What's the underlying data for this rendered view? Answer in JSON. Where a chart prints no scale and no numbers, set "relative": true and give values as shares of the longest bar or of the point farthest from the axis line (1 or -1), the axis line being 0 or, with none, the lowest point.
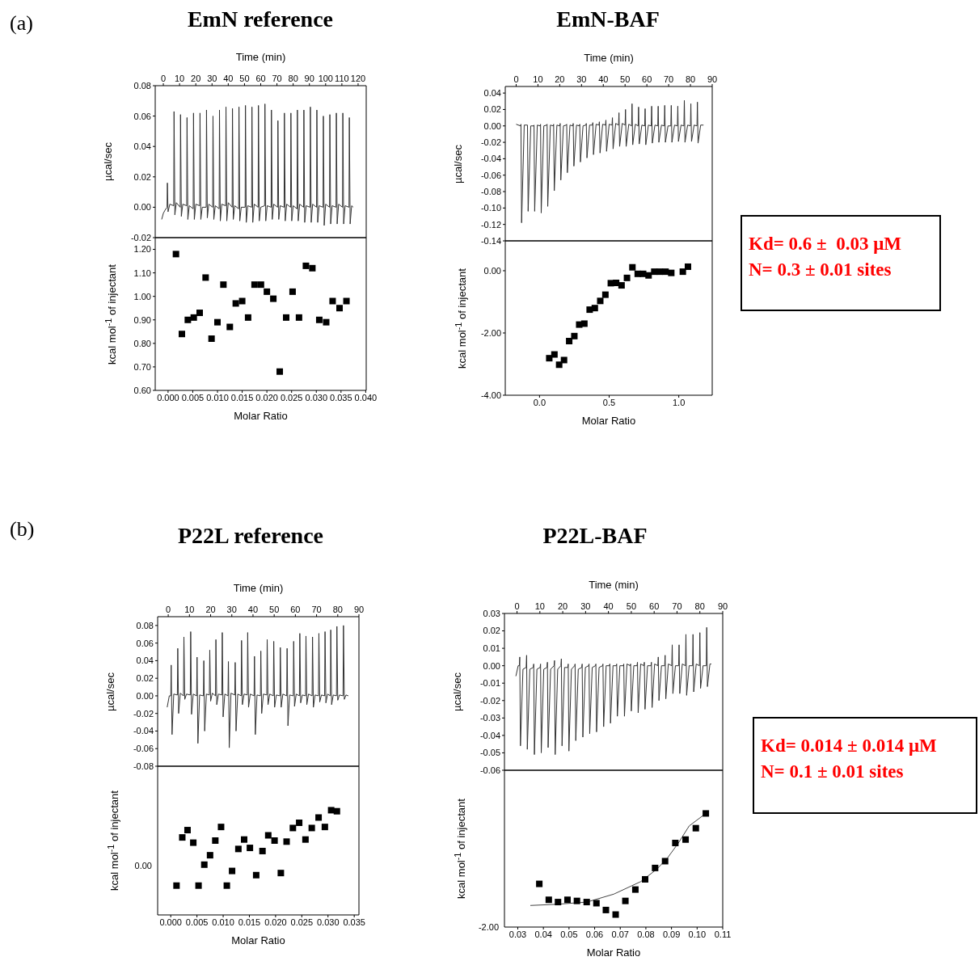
{
  "chart_data": [
    {
      "type": "line",
      "title": "EmN reference",
      "xlabel": "Time (min)",
      "ylabel": "µcal/sec",
      "annotations": [
        "(a)"
      ],
      "xlim": [
        -5,
        125
      ],
      "xticks": [
        0,
        10,
        20,
        30,
        40,
        50,
        60,
        70,
        80,
        90,
        100,
        110,
        120
      ],
      "ylim": [
        -0.02,
        0.08
      ],
      "yticks": [
        -0.02,
        {
          "value": 0,
          "label": "0.00"
        },
        0.02,
        0.04,
        0.06,
        0.08
      ],
      "series": [
        {
          "color": "#333333",
          "x": [
            -1,
            0,
            1,
            2.3,
            2.5,
            2.9,
            4,
            6.4,
            6.6,
            7.1,
            8,
            10.4,
            10.6,
            11.1,
            12,
            14.4,
            14.6,
            15.1,
            16,
            18.4,
            18.6,
            19.1,
            20,
            22.4,
            22.6,
            23.1,
            24,
            26.4,
            26.6,
            27.1,
            28,
            30.4,
            30.6,
            31.1,
            32,
            34.4,
            34.6,
            35.1,
            36,
            38.4,
            38.6,
            39.1,
            40,
            42.4,
            42.6,
            43.1,
            44,
            46.4,
            46.6,
            47.1,
            48,
            50.4,
            50.6,
            51.1,
            52,
            54.4,
            54.6,
            55.1,
            56,
            58.4,
            58.6,
            59.1,
            60,
            62.4,
            62.6,
            63.1,
            64,
            66.4,
            66.6,
            67.1,
            68,
            70.4,
            70.6,
            71.1,
            72,
            74.4,
            74.6,
            75.1,
            76,
            78.4,
            78.6,
            79.1,
            80,
            82.4,
            82.6,
            83.1,
            84,
            86.4,
            86.6,
            87.1,
            88,
            90.4,
            90.6,
            91.1,
            92,
            94.4,
            94.6,
            95.1,
            96,
            98.4,
            98.6,
            99.1,
            100,
            102.4,
            102.6,
            103.1,
            104,
            106.4,
            106.6,
            107.1,
            108,
            110.4,
            110.6,
            111.1,
            112,
            114.4,
            114.6,
            115.1,
            116,
            117
          ],
          "values": [
            -0.008,
            -0.004,
            -0.002,
            0,
            0.016,
            -0.003,
            0.002,
            0.001,
            0.063,
            -0.005,
            0.003,
            0,
            0.061,
            -0.006,
            0.002,
            0.001,
            0.059,
            -0.008,
            0.001,
            -0.001,
            0.062,
            -0.008,
            0.002,
            0.001,
            0.062,
            -0.008,
            0,
            0,
            0.064,
            -0.007,
            0.002,
            0,
            0.06,
            -0.008,
            0.001,
            -0.001,
            0.064,
            -0.009,
            0.002,
            0.001,
            0.066,
            -0.009,
            0.003,
            0,
            0.065,
            -0.008,
            0.001,
            -0.001,
            0.066,
            -0.009,
            0,
            0,
            0.067,
            -0.01,
            0.001,
            0,
            0.066,
            -0.01,
            0.002,
            0,
            0.067,
            -0.009,
            0,
            0.001,
            0.068,
            -0.009,
            0.001,
            0,
            0.064,
            -0.008,
            0.002,
            0,
            0.057,
            -0.008,
            0.001,
            0,
            0.062,
            -0.009,
            0.002,
            0,
            0.062,
            -0.009,
            0.001,
            -0.001,
            0.064,
            -0.009,
            0.002,
            0,
            0.064,
            -0.01,
            0.001,
            0,
            0.066,
            -0.01,
            0.002,
            0,
            0.064,
            -0.01,
            0.001,
            0,
            0.06,
            -0.012,
            0.002,
            0,
            0.061,
            -0.011,
            0.001,
            0,
            0.062,
            -0.011,
            0.002,
            0,
            0.062,
            -0.011,
            0.001,
            0,
            0.059,
            -0.011,
            0.001,
            0
          ]
        }
      ]
    },
    {
      "type": "scatter",
      "xlabel": "Molar Ratio",
      "ylabel": "kcal mol$^{-1}$ of injectant",
      "marker": "square",
      "xlim": [
        -0.0026,
        0.0401
      ],
      "xticks": [
        {
          "value": 0,
          "label": "0.000"
        },
        0.005,
        {
          "value": 0.01,
          "label": "0.010"
        },
        0.015,
        {
          "value": 0.02,
          "label": "0.020"
        },
        0.025,
        {
          "value": 0.03,
          "label": "0.030"
        },
        0.035,
        {
          "value": 0.04,
          "label": "0.040"
        }
      ],
      "ylim": [
        0.6,
        1.25
      ],
      "yticks": [
        {
          "value": 0.6,
          "label": "0.60"
        },
        {
          "value": 0.7,
          "label": "0.70"
        },
        {
          "value": 0.8,
          "label": "0.80"
        },
        {
          "value": 0.9,
          "label": "0.90"
        },
        {
          "value": 1,
          "label": "1.00"
        },
        {
          "value": 1.1,
          "label": "1.10"
        },
        {
          "value": 1.2,
          "label": "1.20"
        }
      ],
      "series": [
        {
          "color": "#000000",
          "x": [
            0.0016,
            0.0028,
            0.004,
            0.0052,
            0.0064,
            0.0076,
            0.0088,
            0.01,
            0.0112,
            0.0125,
            0.0137,
            0.015,
            0.0162,
            0.0175,
            0.0188,
            0.02,
            0.0213,
            0.0226,
            0.0239,
            0.0252,
            0.0265,
            0.0279,
            0.0292,
            0.0306,
            0.032,
            0.0333,
            0.0347,
            0.0361
          ],
          "values": [
            1.18,
            0.84,
            0.9,
            0.91,
            0.93,
            1.08,
            0.82,
            0.89,
            1.05,
            0.87,
            0.97,
            0.98,
            0.91,
            1.05,
            1.05,
            1.02,
            0.99,
            0.68,
            0.91,
            1.02,
            0.91,
            1.13,
            1.12,
            0.9,
            0.89,
            0.98,
            0.95,
            0.98
          ]
        }
      ]
    },
    {
      "type": "line",
      "title": "EmN-BAF",
      "xlabel": "Time (min)",
      "ylabel": "µcal/sec",
      "xlim": [
        -5,
        90
      ],
      "xticks": [
        0,
        10,
        20,
        30,
        40,
        50,
        60,
        70,
        80,
        90
      ],
      "ylim": [
        -0.14,
        0.048
      ],
      "yticks": [
        -0.14,
        -0.12,
        {
          "value": -0.1,
          "label": "-0.10"
        },
        -0.08,
        -0.06,
        -0.04,
        -0.02,
        {
          "value": 0,
          "label": "0.00"
        },
        0.02,
        0.04
      ],
      "series": [
        {
          "color": "#333333",
          "x": [
            0,
            2,
            2.2,
            2.5,
            3.7,
            5,
            5.2,
            5.5,
            6.7,
            8,
            8.2,
            8.5,
            9.7,
            11,
            11.2,
            11.5,
            12.7,
            14,
            14.2,
            14.5,
            15.7,
            17,
            17.2,
            17.5,
            18.7,
            20,
            20.2,
            20.5,
            21.7,
            23,
            23.2,
            23.5,
            24.7,
            26,
            26.2,
            26.5,
            27.7,
            29,
            29.2,
            29.5,
            30.7,
            32,
            32.2,
            32.5,
            33.7,
            35,
            35.2,
            35.5,
            36.7,
            38,
            38.2,
            38.5,
            39.7,
            41,
            41.2,
            41.5,
            42.7,
            44,
            44.2,
            44.5,
            45.7,
            47,
            47.2,
            47.5,
            48.7,
            50,
            50.2,
            50.5,
            51.7,
            53,
            53.2,
            53.5,
            54.7,
            56,
            56.2,
            56.5,
            57.7,
            59,
            59.2,
            59.5,
            60.7,
            62,
            62.2,
            62.5,
            63.7,
            65,
            65.2,
            65.5,
            66.7,
            68,
            68.2,
            68.5,
            69.7,
            71,
            71.2,
            71.5,
            72.7,
            74,
            74.2,
            74.5,
            75.7,
            77,
            77.2,
            77.5,
            78.7,
            80,
            80.2,
            80.5,
            81.7,
            83,
            83.2,
            83.5,
            84.7,
            86
          ],
          "values": [
            0.002,
            0,
            0.002,
            -0.118,
            0.001,
            0.001,
            0.001,
            -0.104,
            0,
            0,
            0.001,
            -0.104,
            0.001,
            0,
            0.002,
            -0.106,
            0,
            0.001,
            0.002,
            -0.098,
            0.001,
            0,
            0.002,
            -0.079,
            0.001,
            0,
            0.003,
            -0.066,
            0,
            0.001,
            0.002,
            -0.057,
            0.001,
            0,
            0.003,
            -0.049,
            0.001,
            0,
            0.002,
            -0.044,
            0,
            0.001,
            0.003,
            -0.039,
            0.001,
            0.001,
            0.004,
            -0.035,
            0.002,
            0.001,
            0.005,
            -0.033,
            0.002,
            0.001,
            0.007,
            -0.031,
            0.002,
            0.001,
            0.01,
            -0.028,
            0.003,
            0.001,
            0.016,
            -0.025,
            0.003,
            0.001,
            0.02,
            -0.025,
            0.002,
            0,
            0.027,
            -0.023,
            0.002,
            0,
            0.023,
            -0.022,
            0.001,
            0,
            0.021,
            -0.023,
            0.001,
            0,
            0.024,
            -0.021,
            0.001,
            0,
            0.024,
            -0.02,
            0.001,
            0,
            0.025,
            -0.02,
            0,
            0,
            0.025,
            -0.02,
            0.001,
            0,
            0.024,
            -0.019,
            0.001,
            0,
            0.031,
            -0.02,
            0.001,
            0,
            0.027,
            -0.019,
            0.001,
            0,
            0.029,
            -0.021,
            0.001,
            0.001
          ]
        }
      ]
    },
    {
      "type": "scatter",
      "xlabel": "Molar Ratio",
      "ylabel": "kcal mol$^{-1}$ of injectant",
      "marker": "square",
      "xlim": [
        -0.246,
        1.24
      ],
      "xticks": [
        {
          "value": 0,
          "label": "0.0"
        },
        0.5,
        {
          "value": 1,
          "label": "1.0"
        }
      ],
      "ylim": [
        -4,
        0.96
      ],
      "yticks": [
        {
          "value": -4,
          "label": "-4.00"
        },
        {
          "value": -2,
          "label": "-2.00"
        },
        {
          "value": 0,
          "label": "0.00"
        }
      ],
      "series": [
        {
          "color": "#000000",
          "x": [
            0.07,
            0.107,
            0.141,
            0.176,
            0.213,
            0.25,
            0.285,
            0.322,
            0.36,
            0.397,
            0.436,
            0.473,
            0.512,
            0.55,
            0.589,
            0.628,
            0.667,
            0.705,
            0.744,
            0.783,
            0.824,
            0.864,
            0.905,
            0.946,
            1.029,
            1.066
          ],
          "values": [
            -2.81,
            -2.69,
            -3.02,
            -2.87,
            -2.26,
            -2.1,
            -1.73,
            -1.7,
            -1.25,
            -1.2,
            -0.97,
            -0.77,
            -0.4,
            -0.39,
            -0.47,
            -0.23,
            0.11,
            -0.1,
            -0.1,
            -0.15,
            -0.03,
            -0.03,
            -0.03,
            -0.07,
            -0.03,
            0.13
          ]
        }
      ]
    },
    {
      "type": "other",
      "annotations": [
        "Kd= 0.6 ±  0.03 μM",
        "N= 0.3 ± 0.01 sites"
      ]
    },
    {
      "type": "line",
      "title": "P22L reference",
      "xlabel": "Time (min)",
      "ylabel": "µcal/sec",
      "annotations": [
        "(b)"
      ],
      "xlim": [
        -5,
        90
      ],
      "xticks": [
        0,
        10,
        20,
        30,
        40,
        50,
        60,
        70,
        80,
        90
      ],
      "ylim": [
        -0.08,
        0.09
      ],
      "yticks": [
        -0.08,
        -0.06,
        -0.04,
        -0.02,
        {
          "value": 0,
          "label": "0.00"
        },
        0.02,
        0.04,
        0.06,
        0.08
      ],
      "series": [
        {
          "color": "#333333",
          "x": [
            -0.5,
            0.5,
            1.2,
            1.4,
            1.8,
            2.6,
            4.3,
            4.5,
            4.9,
            5.7,
            7.2,
            7.4,
            7.8,
            8.6,
            10.4,
            10.6,
            11,
            11.8,
            13.4,
            13.6,
            14,
            14.8,
            16.6,
            16.8,
            17.2,
            18,
            19.4,
            19.6,
            20,
            20.8,
            22.3,
            22.5,
            22.9,
            23.7,
            25.3,
            25.5,
            25.9,
            26.7,
            28.2,
            28.4,
            28.8,
            29.6,
            31.4,
            31.6,
            32,
            32.8,
            34.4,
            34.6,
            35,
            35.8,
            37.3,
            37.5,
            37.9,
            38.7,
            40.5,
            40.7,
            41.1,
            41.9,
            43.5,
            43.7,
            44.1,
            44.9,
            46.5,
            46.7,
            47.1,
            47.9,
            49.6,
            49.8,
            50.2,
            51,
            52.7,
            52.9,
            53.3,
            54.1,
            55.9,
            56.1,
            56.5,
            57.3,
            59,
            59.2,
            59.6,
            60.4,
            61.9,
            62.1,
            62.5,
            63.3,
            64.8,
            65,
            65.4,
            66.2,
            67.9,
            68.1,
            68.5,
            69.3,
            70.9,
            71.1,
            71.5,
            72.3,
            73.8,
            74,
            74.4,
            75.2,
            76.5,
            76.7,
            77.1,
            77.9,
            79.4,
            79.6,
            80,
            80.8,
            82.5,
            82.7,
            83.1,
            83.9,
            85
          ],
          "values": [
            -0.013,
            0,
            0,
            0.035,
            -0.044,
            0.002,
            0.001,
            0.054,
            -0.02,
            0.003,
            0,
            0.067,
            -0.004,
            0.002,
            0.001,
            0.073,
            -0.021,
            0.002,
            0,
            0.044,
            -0.054,
            0.001,
            0,
            0.04,
            -0.04,
            0.002,
            0.001,
            0.052,
            -0.006,
            0.003,
            0,
            0.064,
            -0.01,
            0.002,
            0.001,
            0.072,
            -0.024,
            0.002,
            0,
            0.039,
            -0.059,
            0.003,
            0.001,
            0.038,
            -0.04,
            0.002,
            0,
            0.063,
            -0.01,
            0.002,
            0.001,
            0.072,
            -0.013,
            0.002,
            0,
            0.045,
            -0.044,
            0.001,
            0,
            0.051,
            -0.02,
            0.002,
            0.001,
            0.064,
            -0.01,
            0.002,
            0,
            0.062,
            -0.013,
            0.001,
            0,
            0.055,
            -0.013,
            0.002,
            0,
            0.054,
            -0.034,
            0.001,
            0,
            0.062,
            -0.012,
            0.002,
            0,
            0.071,
            -0.008,
            0.001,
            0,
            0.068,
            -0.01,
            0.002,
            0,
            0.067,
            -0.013,
            0.001,
            0,
            0.071,
            -0.007,
            0.001,
            0,
            0.073,
            -0.008,
            0.002,
            0,
            0.075,
            -0.01,
            0.001,
            0,
            0.079,
            -0.005,
            0.001,
            0,
            0.08,
            -0.004,
            0.001,
            0
          ]
        }
      ]
    },
    {
      "type": "scatter",
      "relative": true,
      "xlabel": "Molar Ratio",
      "ylabel": "kcal mol$^{-1}$ of injectant",
      "marker": "square",
      "xlim": [
        -0.0025,
        0.0359
      ],
      "xticks": [
        {
          "value": 0,
          "label": "0.000"
        },
        0.005,
        {
          "value": 0.01,
          "label": "0.010"
        },
        0.015,
        {
          "value": 0.02,
          "label": "0.020"
        },
        0.025,
        {
          "value": 0.03,
          "label": "0.030"
        },
        0.035
      ],
      "annotations": [
        "0.00"
      ],
      "series": [
        {
          "color": "#000000",
          "x": [
            0.0011,
            0.0022,
            0.0032,
            0.0043,
            0.0053,
            0.0064,
            0.0075,
            0.0085,
            0.0096,
            0.0107,
            0.0117,
            0.0129,
            0.014,
            0.0151,
            0.0163,
            0.0175,
            0.0186,
            0.0198,
            0.021,
            0.0221,
            0.0233,
            0.0245,
            0.0257,
            0.0269,
            0.0282,
            0.0294,
            0.0306,
            0.0317
          ],
          "values": [
            0.28,
            0.74,
            0.81,
            0.69,
            0.28,
            0.48,
            0.57,
            0.71,
            0.84,
            0.28,
            0.42,
            0.63,
            0.72,
            0.64,
            0.38,
            0.61,
            0.76,
            0.71,
            0.4,
            0.7,
            0.83,
            0.88,
            0.72,
            0.83,
            0.93,
            0.84,
            1.0,
            0.99
          ]
        }
      ]
    },
    {
      "type": "line",
      "title": "P22L-BAF",
      "xlabel": "Time (min)",
      "ylabel": "µcal/sec",
      "xlim": [
        -5.5,
        90
      ],
      "xticks": [
        0,
        10,
        20,
        30,
        40,
        50,
        60,
        70,
        80,
        90
      ],
      "ylim": [
        -0.06,
        0.03
      ],
      "yticks": [
        -0.06,
        -0.05,
        -0.04,
        -0.03,
        -0.02,
        -0.01,
        {
          "value": 0,
          "label": "0.00"
        },
        0.01,
        0.02,
        0.03
      ],
      "series": [
        {
          "color": "#333333",
          "x": [
            -0.5,
            0.5,
            1,
            1.2,
            1.5,
            2.6,
            4,
            4.2,
            4.5,
            5.6,
            7.1,
            7.3,
            7.6,
            8.7,
            10.1,
            10.3,
            10.6,
            11.7,
            13.1,
            13.3,
            13.6,
            14.7,
            16.2,
            16.4,
            16.7,
            17.8,
            19.2,
            19.4,
            19.7,
            20.8,
            22.2,
            22.4,
            22.7,
            23.8,
            25.2,
            25.4,
            25.7,
            26.8,
            28.3,
            28.5,
            28.8,
            29.9,
            31.3,
            31.5,
            31.8,
            32.9,
            34.3,
            34.5,
            34.8,
            35.9,
            37.4,
            37.6,
            37.9,
            39,
            40.4,
            40.6,
            40.9,
            42,
            43.4,
            43.6,
            43.9,
            45,
            46.5,
            46.7,
            47,
            48.1,
            49.5,
            49.7,
            50,
            51.1,
            52.5,
            52.7,
            53,
            54.1,
            55.5,
            55.7,
            56,
            57.1,
            58.6,
            58.8,
            59.1,
            60.2,
            61.6,
            61.8,
            62.1,
            63.2,
            64.6,
            64.8,
            65.1,
            66.2,
            67.7,
            67.9,
            68.2,
            69.3,
            70.7,
            70.9,
            71.2,
            72.3,
            73.7,
            73.9,
            74.2,
            75.3,
            76.8,
            77,
            77.3,
            78.4,
            79.8,
            80,
            80.3,
            81.4,
            82.8,
            83,
            83.3,
            84.4,
            85
          ],
          "values": [
            -0.006,
            0,
            0,
            0.005,
            -0.046,
            -0.002,
            -0.001,
            0.006,
            -0.048,
            -0.002,
            -0.001,
            0.001,
            -0.051,
            -0.002,
            -0.001,
            0.001,
            -0.05,
            -0.002,
            -0.001,
            0.002,
            -0.047,
            -0.002,
            0,
            0.003,
            -0.051,
            -0.002,
            0,
            0.004,
            -0.046,
            -0.001,
            -0.001,
            0.001,
            -0.049,
            -0.002,
            0,
            0.001,
            -0.043,
            -0.002,
            -0.001,
            0.001,
            -0.041,
            -0.001,
            0,
            0.001,
            -0.039,
            -0.001,
            0,
            0.001,
            -0.038,
            -0.001,
            0,
            0.001,
            -0.035,
            0,
            0,
            0.001,
            -0.033,
            0,
            0,
            0.001,
            -0.029,
            0,
            0,
            0.001,
            -0.029,
            0.001,
            0,
            0.001,
            -0.026,
            0,
            0,
            0.002,
            -0.027,
            0.001,
            0,
            0.002,
            -0.025,
            0,
            0,
            0.002,
            -0.024,
            0.001,
            0,
            0.005,
            -0.02,
            0,
            0,
            0.006,
            -0.019,
            0.001,
            0,
            0.012,
            -0.016,
            0,
            0,
            0.012,
            -0.016,
            0.001,
            0,
            0.018,
            -0.017,
            0,
            0,
            0.018,
            -0.015,
            0.001,
            0,
            0.019,
            -0.013,
            0,
            0,
            0.022,
            -0.012,
            0.001,
            0.001
          ]
        }
      ]
    },
    {
      "type": "scatter",
      "relative": true,
      "xlabel": "Molar Ratio",
      "ylabel": "kcal mol$^{-1}$ of injectant",
      "xlim": [
        0.0248,
        0.11
      ],
      "xticks": [
        0.03,
        0.04,
        0.05,
        0.06,
        0.07,
        0.08,
        0.09,
        {
          "value": 0.1,
          "label": "0.10"
        },
        0.11
      ],
      "annotations": [
        "-2.00"
      ],
      "series": [
        {
          "color": "#000000",
          "marker": "square",
          "x": [
            0.0384,
            0.0421,
            0.0457,
            0.0494,
            0.0531,
            0.0569,
            0.0607,
            0.0644,
            0.0682,
            0.072,
            0.0759,
            0.0797,
            0.0836,
            0.0875,
            0.0915,
            0.0955,
            0.0995,
            0.1034
          ],
          "values": [
            0.38,
            0.24,
            0.22,
            0.24,
            0.23,
            0.22,
            0.21,
            0.15,
            0.11,
            0.23,
            0.33,
            0.42,
            0.52,
            0.58,
            0.74,
            0.77,
            0.87,
            1.0
          ]
        },
        {
          "type": "line",
          "color": "#444444",
          "x": [
            0.0349,
            0.045,
            0.057,
            0.0675,
            0.078,
            0.0843,
            0.0885,
            0.0927,
            0.0969,
            0.1034
          ],
          "values": [
            0.19,
            0.2,
            0.22,
            0.29,
            0.4,
            0.51,
            0.61,
            0.74,
            0.89,
            1.0
          ]
        }
      ]
    },
    {
      "type": "other",
      "annotations": [
        "Kd= 0.014 ± 0.014 μM",
        "N= 0.1 ± 0.01 sites"
      ]
    }
  ]
}
